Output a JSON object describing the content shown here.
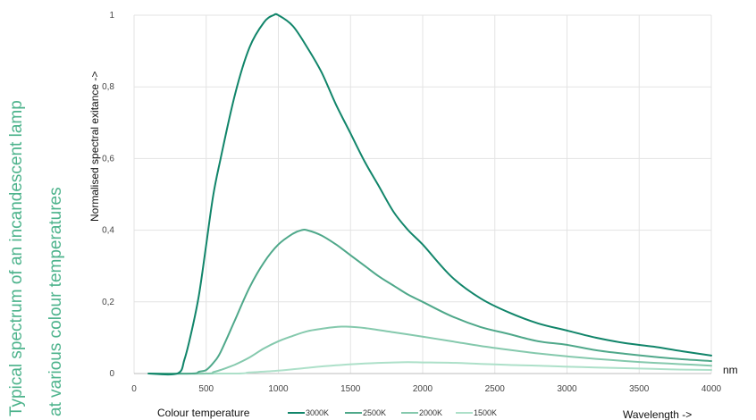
{
  "title": {
    "line1": "Typical spectrum of an incandescent lamp",
    "line2": "at various colour temperatures"
  },
  "colors": {
    "title": "#4db38c",
    "grid": "#e3e3e3",
    "axis": "#bdbdbd"
  },
  "chart_data": {
    "type": "line",
    "ylabel": "Normalised spectral exitance  ->",
    "xlabel": "Wavelength ->",
    "x_unit": "nm",
    "legend_title": "Colour temperature",
    "xlim": [
      0,
      4000
    ],
    "ylim": [
      0,
      1
    ],
    "x_ticks": [
      "0",
      "500",
      "1000",
      "1500",
      "2000",
      "2500",
      "3000",
      "3500",
      "4000"
    ],
    "y_ticks": [
      "0",
      "0,2",
      "0,4",
      "0,6",
      "0,8",
      "1"
    ],
    "grid": "vertical and horizontal",
    "legend_position": "bottom",
    "series": [
      {
        "name": "3000K",
        "color": "#11856a",
        "x": [
          100,
          300,
          350,
          400,
          450,
          500,
          550,
          600,
          700,
          800,
          900,
          966,
          1000,
          1100,
          1200,
          1300,
          1400,
          1500,
          1600,
          1700,
          1800,
          1900,
          2000,
          2200,
          2400,
          2600,
          2800,
          3000,
          3200,
          3400,
          3600,
          3800,
          4000
        ],
        "y": [
          0,
          0,
          0.04,
          0.12,
          0.22,
          0.36,
          0.5,
          0.6,
          0.78,
          0.91,
          0.98,
          1.0,
          1.0,
          0.97,
          0.91,
          0.84,
          0.75,
          0.67,
          0.59,
          0.52,
          0.45,
          0.4,
          0.36,
          0.27,
          0.21,
          0.17,
          0.14,
          0.12,
          0.1,
          0.085,
          0.075,
          0.062,
          0.05
        ]
      },
      {
        "name": "2500K",
        "color": "#4fa88a",
        "x": [
          100,
          400,
          450,
          500,
          550,
          600,
          700,
          800,
          900,
          1000,
          1100,
          1160,
          1200,
          1300,
          1400,
          1500,
          1600,
          1700,
          1800,
          1900,
          2000,
          2200,
          2400,
          2600,
          2800,
          3000,
          3200,
          3400,
          3600,
          3800,
          4000
        ],
        "y": [
          0,
          0,
          0.005,
          0.01,
          0.03,
          0.06,
          0.15,
          0.24,
          0.31,
          0.36,
          0.39,
          0.4,
          0.4,
          0.385,
          0.36,
          0.33,
          0.3,
          0.27,
          0.245,
          0.22,
          0.2,
          0.16,
          0.13,
          0.11,
          0.09,
          0.08,
          0.065,
          0.055,
          0.047,
          0.04,
          0.035
        ]
      },
      {
        "name": "2000K",
        "color": "#85c9ad",
        "x": [
          100,
          500,
          550,
          600,
          700,
          800,
          900,
          1000,
          1100,
          1200,
          1300,
          1400,
          1470,
          1600,
          1800,
          2000,
          2200,
          2400,
          2600,
          2800,
          3000,
          3200,
          3400,
          3600,
          3800,
          4000
        ],
        "y": [
          0,
          0,
          0.004,
          0.01,
          0.025,
          0.045,
          0.07,
          0.09,
          0.105,
          0.118,
          0.125,
          0.13,
          0.131,
          0.127,
          0.115,
          0.103,
          0.09,
          0.077,
          0.066,
          0.056,
          0.048,
          0.041,
          0.035,
          0.03,
          0.026,
          0.022
        ]
      },
      {
        "name": "1500K",
        "color": "#ade0c9",
        "x": [
          100,
          700,
          800,
          1000,
          1200,
          1400,
          1600,
          1800,
          1900,
          2000,
          2200,
          2400,
          2600,
          2800,
          3000,
          3200,
          3400,
          3600,
          3800,
          4000
        ],
        "y": [
          0,
          0,
          0.003,
          0.008,
          0.016,
          0.023,
          0.028,
          0.031,
          0.032,
          0.031,
          0.03,
          0.027,
          0.024,
          0.022,
          0.019,
          0.017,
          0.015,
          0.013,
          0.011,
          0.01
        ]
      }
    ]
  }
}
